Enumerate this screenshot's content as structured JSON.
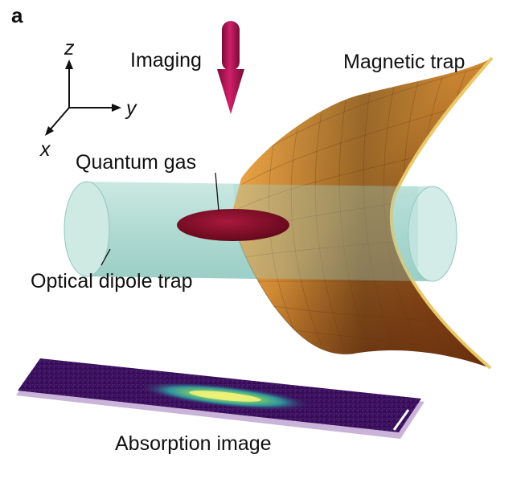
{
  "panel_label": "a",
  "labels": {
    "imaging": "Imaging",
    "magnetic_trap": "Magnetic trap",
    "quantum_gas": "Quantum gas",
    "optical_dipole_trap": "Optical dipole trap",
    "absorption_image": "Absorption image"
  },
  "axes": {
    "z": "z",
    "y": "y",
    "x": "x"
  },
  "colors": {
    "imaging_arrow": "#b0104f",
    "trap_orange": "#f0a040",
    "trap_dark": "#7a3a10",
    "trap_edge": "#e0c060",
    "dipole_trap": "#9fd4cc",
    "quantum_gas": "#8a0f2a",
    "image_background": "#3a0d5c",
    "image_signal": "#e8e860",
    "image_base": "#c9b3d8"
  }
}
